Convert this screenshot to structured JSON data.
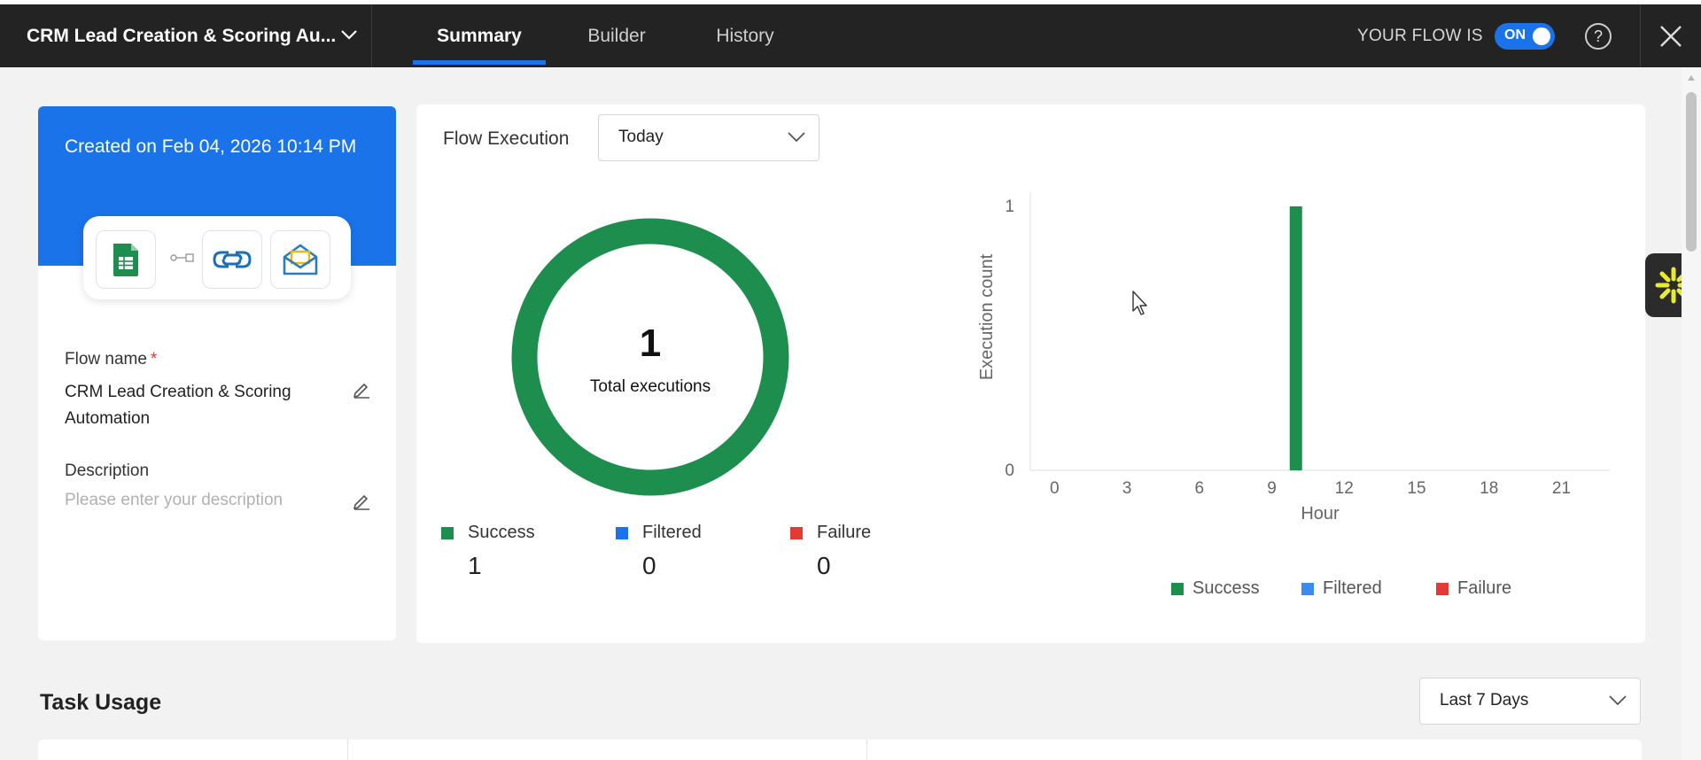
{
  "header": {
    "flow_title": "CRM Lead Creation & Scoring Au...",
    "tabs": [
      {
        "label": "Summary",
        "active": true
      },
      {
        "label": "Builder",
        "active": false
      },
      {
        "label": "History",
        "active": false
      }
    ],
    "flow_status_label": "YOUR FLOW IS",
    "flow_toggle": "ON",
    "help_glyph": "?"
  },
  "left_panel": {
    "created_text": "Created on Feb 04, 2026 10:14 PM",
    "apps": [
      "google-sheets-icon",
      "zoho-crm-icon",
      "mail-icon"
    ],
    "flow_name_label": "Flow name",
    "required_mark": "*",
    "flow_name_value": "CRM Lead Creation & Scoring Automation",
    "description_label": "Description",
    "description_placeholder": "Please enter your description"
  },
  "execution": {
    "title": "Flow Execution",
    "period": "Today",
    "total": "1",
    "total_label": "Total executions",
    "stats": [
      {
        "label": "Success",
        "value": "1",
        "color": "#1e8e4e"
      },
      {
        "label": "Filtered",
        "value": "0",
        "color": "#1a73e8"
      },
      {
        "label": "Failure",
        "value": "0",
        "color": "#e53935"
      }
    ]
  },
  "chart_data": {
    "type": "bar",
    "xlabel": "Hour",
    "ylabel": "Execution count",
    "xlim": [
      -1,
      23
    ],
    "ylim": [
      0,
      1
    ],
    "x_ticks": [
      "0",
      "3",
      "6",
      "9",
      "12",
      "15",
      "18",
      "21"
    ],
    "y_ticks": [
      "0",
      "1"
    ],
    "series": [
      {
        "name": "Success",
        "color": "#1e8e4e",
        "points": [
          {
            "x": 10,
            "y": 1
          }
        ]
      },
      {
        "name": "Filtered",
        "color": "#3c8cf0",
        "points": []
      },
      {
        "name": "Failure",
        "color": "#e53935",
        "points": []
      }
    ],
    "legend_position": "bottom"
  },
  "task_usage": {
    "title": "Task Usage",
    "period": "Last 7 Days"
  }
}
